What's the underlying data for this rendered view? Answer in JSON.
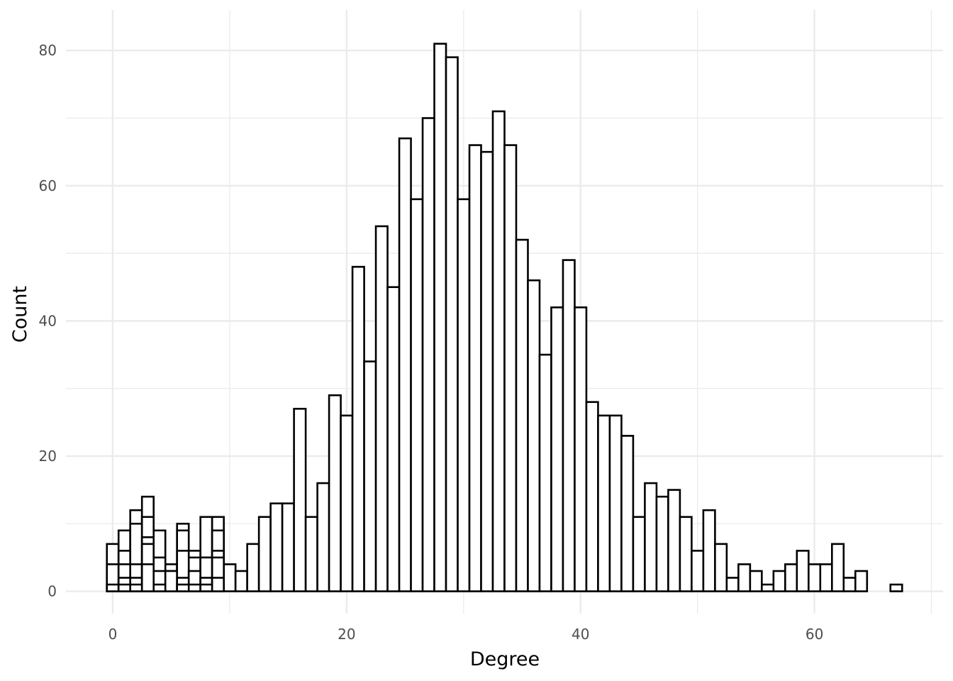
{
  "chart_data": {
    "type": "bar",
    "subtype": "histogram (overlapping)",
    "title": "",
    "xlabel": "Degree",
    "ylabel": "Count",
    "xlim": [
      -4,
      71
    ],
    "ylim": [
      -3.3,
      86
    ],
    "x_ticks": [
      0,
      20,
      40,
      60
    ],
    "y_ticks": [
      0,
      20,
      40,
      60,
      80
    ],
    "grid": true,
    "bin_width": 1,
    "colors": {
      "bar_fill": "#ffffff",
      "bar_outline": "#000000",
      "grid": "#ebebeb"
    },
    "series": [
      {
        "x": [
          0,
          1,
          2,
          3,
          4,
          5,
          6,
          7,
          8,
          9,
          10,
          11,
          12,
          13,
          14,
          15,
          16,
          17,
          18,
          19,
          20,
          21,
          22,
          23,
          24,
          25,
          26,
          27,
          28,
          29,
          30,
          31,
          32,
          33,
          34,
          35,
          36,
          37,
          38,
          39,
          40,
          41,
          42,
          43,
          44,
          45,
          46,
          47,
          48,
          49,
          50,
          51,
          52,
          53,
          54,
          55,
          56,
          57,
          58,
          59,
          60,
          61,
          62,
          63,
          64,
          67
        ],
        "values": [
          7,
          9,
          12,
          14,
          9,
          4,
          10,
          6,
          11,
          11,
          4,
          3,
          7,
          11,
          13,
          13,
          27,
          11,
          16,
          29,
          26,
          48,
          34,
          54,
          45,
          67,
          58,
          70,
          81,
          79,
          58,
          66,
          65,
          71,
          66,
          52,
          46,
          35,
          42,
          49,
          42,
          28,
          26,
          26,
          23,
          11,
          16,
          14,
          15,
          11,
          6,
          12,
          7,
          2,
          4,
          3,
          1,
          3,
          4,
          6,
          4,
          4,
          7,
          2,
          3,
          1
        ]
      },
      {
        "x": [
          0,
          1,
          2,
          3,
          4,
          5,
          6,
          7,
          8,
          9
        ],
        "values": [
          4,
          6,
          10,
          11,
          5,
          3,
          9,
          5,
          5,
          9
        ]
      },
      {
        "x": [
          0,
          1,
          2,
          3,
          4,
          5,
          6,
          7,
          8,
          9
        ],
        "values": [
          1,
          4,
          4,
          8,
          3,
          3,
          6,
          3,
          5,
          6
        ]
      },
      {
        "x": [
          1,
          2,
          3,
          4,
          6,
          7,
          8,
          9
        ],
        "values": [
          2,
          2,
          7,
          1,
          2,
          1,
          2,
          5
        ]
      },
      {
        "x": [
          1,
          2,
          3,
          6,
          8,
          9
        ],
        "values": [
          1,
          1,
          4,
          1,
          1,
          2
        ]
      }
    ]
  }
}
